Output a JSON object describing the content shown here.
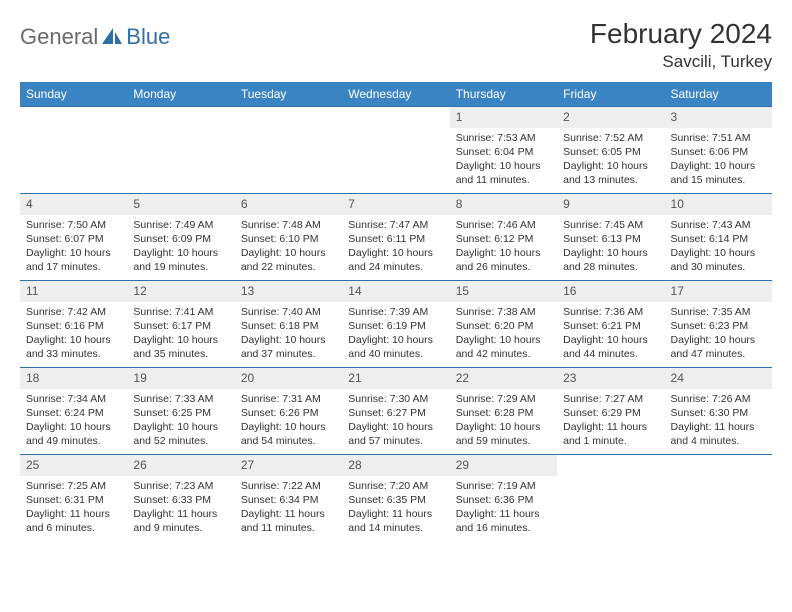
{
  "brand": {
    "part1": "General",
    "part2": "Blue"
  },
  "title": "February 2024",
  "subtitle": "Savcili, Turkey",
  "colors": {
    "header_bg": "#3b84c4",
    "row_border": "#2f6fa8",
    "daynum_bg": "#eeeeee",
    "text": "#333333",
    "logo_gray": "#6b6b6b",
    "logo_blue": "#2f6fa8"
  },
  "dayNames": [
    "Sunday",
    "Monday",
    "Tuesday",
    "Wednesday",
    "Thursday",
    "Friday",
    "Saturday"
  ],
  "weeks": [
    [
      {
        "empty": true
      },
      {
        "empty": true
      },
      {
        "empty": true
      },
      {
        "empty": true
      },
      {
        "day": 1,
        "sunrise": "7:53 AM",
        "sunset": "6:04 PM",
        "daylight": "10 hours and 11 minutes."
      },
      {
        "day": 2,
        "sunrise": "7:52 AM",
        "sunset": "6:05 PM",
        "daylight": "10 hours and 13 minutes."
      },
      {
        "day": 3,
        "sunrise": "7:51 AM",
        "sunset": "6:06 PM",
        "daylight": "10 hours and 15 minutes."
      }
    ],
    [
      {
        "day": 4,
        "sunrise": "7:50 AM",
        "sunset": "6:07 PM",
        "daylight": "10 hours and 17 minutes."
      },
      {
        "day": 5,
        "sunrise": "7:49 AM",
        "sunset": "6:09 PM",
        "daylight": "10 hours and 19 minutes."
      },
      {
        "day": 6,
        "sunrise": "7:48 AM",
        "sunset": "6:10 PM",
        "daylight": "10 hours and 22 minutes."
      },
      {
        "day": 7,
        "sunrise": "7:47 AM",
        "sunset": "6:11 PM",
        "daylight": "10 hours and 24 minutes."
      },
      {
        "day": 8,
        "sunrise": "7:46 AM",
        "sunset": "6:12 PM",
        "daylight": "10 hours and 26 minutes."
      },
      {
        "day": 9,
        "sunrise": "7:45 AM",
        "sunset": "6:13 PM",
        "daylight": "10 hours and 28 minutes."
      },
      {
        "day": 10,
        "sunrise": "7:43 AM",
        "sunset": "6:14 PM",
        "daylight": "10 hours and 30 minutes."
      }
    ],
    [
      {
        "day": 11,
        "sunrise": "7:42 AM",
        "sunset": "6:16 PM",
        "daylight": "10 hours and 33 minutes."
      },
      {
        "day": 12,
        "sunrise": "7:41 AM",
        "sunset": "6:17 PM",
        "daylight": "10 hours and 35 minutes."
      },
      {
        "day": 13,
        "sunrise": "7:40 AM",
        "sunset": "6:18 PM",
        "daylight": "10 hours and 37 minutes."
      },
      {
        "day": 14,
        "sunrise": "7:39 AM",
        "sunset": "6:19 PM",
        "daylight": "10 hours and 40 minutes."
      },
      {
        "day": 15,
        "sunrise": "7:38 AM",
        "sunset": "6:20 PM",
        "daylight": "10 hours and 42 minutes."
      },
      {
        "day": 16,
        "sunrise": "7:36 AM",
        "sunset": "6:21 PM",
        "daylight": "10 hours and 44 minutes."
      },
      {
        "day": 17,
        "sunrise": "7:35 AM",
        "sunset": "6:23 PM",
        "daylight": "10 hours and 47 minutes."
      }
    ],
    [
      {
        "day": 18,
        "sunrise": "7:34 AM",
        "sunset": "6:24 PM",
        "daylight": "10 hours and 49 minutes."
      },
      {
        "day": 19,
        "sunrise": "7:33 AM",
        "sunset": "6:25 PM",
        "daylight": "10 hours and 52 minutes."
      },
      {
        "day": 20,
        "sunrise": "7:31 AM",
        "sunset": "6:26 PM",
        "daylight": "10 hours and 54 minutes."
      },
      {
        "day": 21,
        "sunrise": "7:30 AM",
        "sunset": "6:27 PM",
        "daylight": "10 hours and 57 minutes."
      },
      {
        "day": 22,
        "sunrise": "7:29 AM",
        "sunset": "6:28 PM",
        "daylight": "10 hours and 59 minutes."
      },
      {
        "day": 23,
        "sunrise": "7:27 AM",
        "sunset": "6:29 PM",
        "daylight": "11 hours and 1 minute."
      },
      {
        "day": 24,
        "sunrise": "7:26 AM",
        "sunset": "6:30 PM",
        "daylight": "11 hours and 4 minutes."
      }
    ],
    [
      {
        "day": 25,
        "sunrise": "7:25 AM",
        "sunset": "6:31 PM",
        "daylight": "11 hours and 6 minutes."
      },
      {
        "day": 26,
        "sunrise": "7:23 AM",
        "sunset": "6:33 PM",
        "daylight": "11 hours and 9 minutes."
      },
      {
        "day": 27,
        "sunrise": "7:22 AM",
        "sunset": "6:34 PM",
        "daylight": "11 hours and 11 minutes."
      },
      {
        "day": 28,
        "sunrise": "7:20 AM",
        "sunset": "6:35 PM",
        "daylight": "11 hours and 14 minutes."
      },
      {
        "day": 29,
        "sunrise": "7:19 AM",
        "sunset": "6:36 PM",
        "daylight": "11 hours and 16 minutes."
      },
      {
        "empty": true
      },
      {
        "empty": true
      }
    ]
  ],
  "labels": {
    "sunrise": "Sunrise: ",
    "sunset": "Sunset: ",
    "daylight": "Daylight: "
  }
}
